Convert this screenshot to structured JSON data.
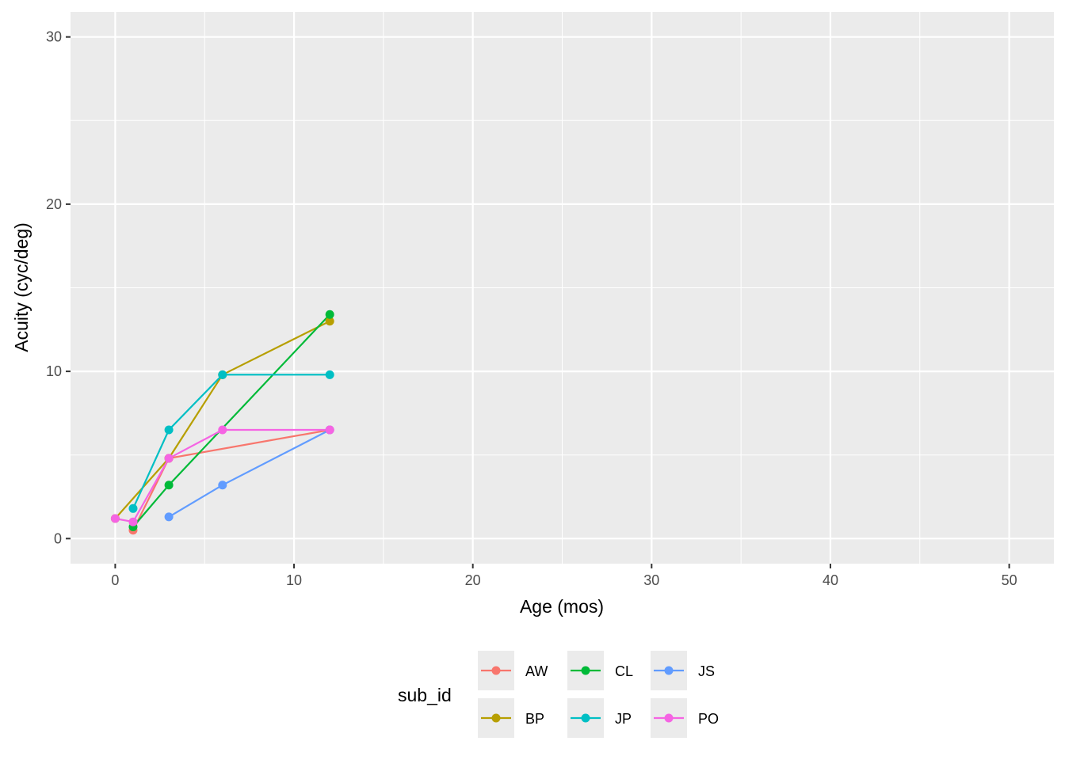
{
  "chart_data": {
    "type": "line",
    "title": "",
    "xlabel": "Age (mos)",
    "ylabel": "Acuity (cyc/deg)",
    "xlim": [
      -2.5,
      52.5
    ],
    "ylim": [
      -1.5,
      31.5
    ],
    "x_ticks": [
      0,
      10,
      20,
      30,
      40,
      50
    ],
    "y_ticks": [
      0,
      10,
      20,
      30
    ],
    "grid": true,
    "legend": {
      "title": "sub_id",
      "placement": "bottom",
      "entries": [
        "AW",
        "BP",
        "CL",
        "JP",
        "JS",
        "PO"
      ]
    },
    "series": [
      {
        "name": "AW",
        "color": "#F8766D",
        "x": [
          1,
          3,
          12
        ],
        "y": [
          0.5,
          4.8,
          6.5
        ]
      },
      {
        "name": "BP",
        "color": "#B79F00",
        "x": [
          0,
          3,
          6,
          12
        ],
        "y": [
          1.2,
          4.8,
          9.8,
          13.0
        ]
      },
      {
        "name": "CL",
        "color": "#00BA38",
        "x": [
          1,
          3,
          12
        ],
        "y": [
          0.7,
          3.2,
          13.4
        ]
      },
      {
        "name": "JP",
        "color": "#00BFC4",
        "x": [
          1,
          3,
          6,
          12
        ],
        "y": [
          1.8,
          6.5,
          9.8,
          9.8
        ]
      },
      {
        "name": "JS",
        "color": "#619CFF",
        "x": [
          3,
          6,
          12
        ],
        "y": [
          1.3,
          3.2,
          6.5
        ]
      },
      {
        "name": "PO",
        "color": "#F564E3",
        "x": [
          0,
          1,
          3,
          6,
          12
        ],
        "y": [
          1.2,
          1.0,
          4.8,
          6.5,
          6.5
        ]
      }
    ]
  }
}
